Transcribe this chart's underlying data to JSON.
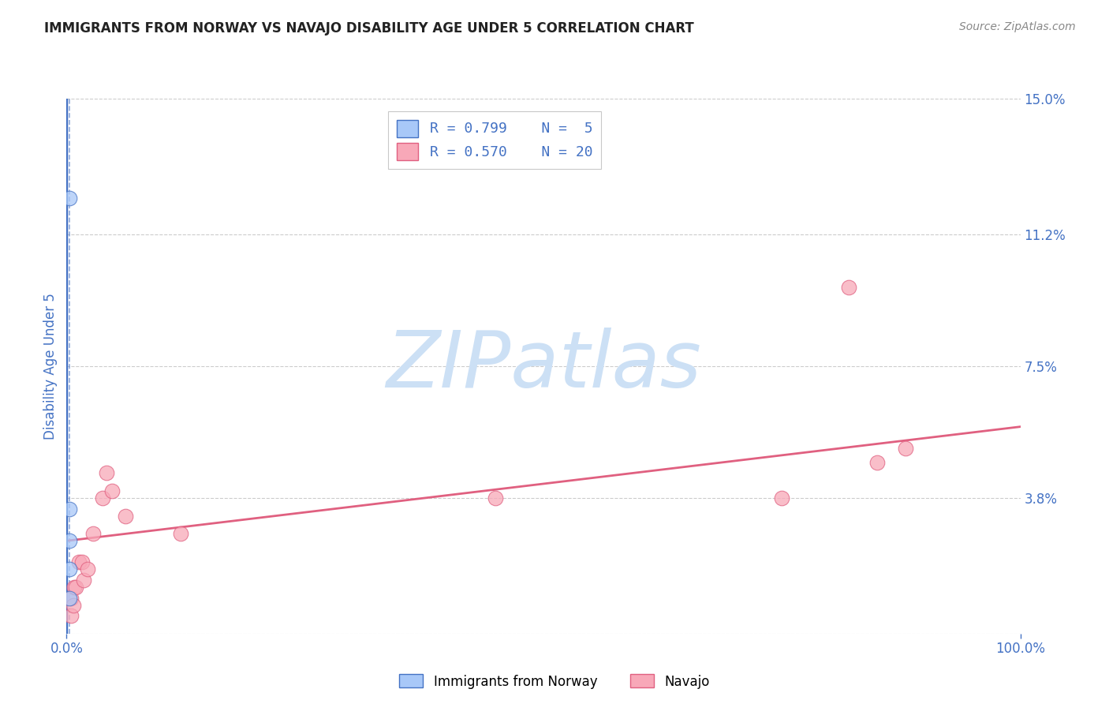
{
  "title": "IMMIGRANTS FROM NORWAY VS NAVAJO DISABILITY AGE UNDER 5 CORRELATION CHART",
  "source": "Source: ZipAtlas.com",
  "ylabel": "Disability Age Under 5",
  "xlim": [
    0,
    1.0
  ],
  "ylim": [
    0,
    0.15
  ],
  "ytick_positions": [
    0.0,
    0.038,
    0.075,
    0.112,
    0.15
  ],
  "ytick_labels": [
    "",
    "3.8%",
    "7.5%",
    "11.2%",
    "15.0%"
  ],
  "xtick_positions": [
    0.0,
    1.0
  ],
  "xtick_labels": [
    "0.0%",
    "100.0%"
  ],
  "legend_r1": "R = 0.799",
  "legend_n1": "N =  5",
  "legend_r2": "R = 0.570",
  "legend_n2": "N = 20",
  "norway_color": "#a8c8f8",
  "navajo_color": "#f8a8b8",
  "norway_edge_color": "#4472c4",
  "navajo_edge_color": "#e06080",
  "norway_scatter_x": [
    0.003,
    0.003,
    0.003,
    0.003,
    0.003
  ],
  "norway_scatter_y": [
    0.122,
    0.035,
    0.026,
    0.018,
    0.01
  ],
  "navajo_scatter_x": [
    0.005,
    0.005,
    0.007,
    0.008,
    0.01,
    0.013,
    0.016,
    0.018,
    0.022,
    0.028,
    0.038,
    0.042,
    0.048,
    0.062,
    0.45,
    0.12,
    0.82,
    0.88,
    0.85,
    0.75
  ],
  "navajo_scatter_y": [
    0.005,
    0.01,
    0.008,
    0.013,
    0.013,
    0.02,
    0.02,
    0.015,
    0.018,
    0.028,
    0.038,
    0.045,
    0.04,
    0.033,
    0.038,
    0.028,
    0.097,
    0.052,
    0.048,
    0.038
  ],
  "navajo_trend_x0": 0.0,
  "navajo_trend_x1": 1.0,
  "navajo_trend_y0": 0.026,
  "navajo_trend_y1": 0.058,
  "watermark_text": "ZIPatlas",
  "watermark_color": "#cce0f5",
  "background_color": "#ffffff",
  "grid_color": "#cccccc",
  "title_color": "#222222",
  "axis_color": "#4472c4",
  "norway_vline_x": 0.003,
  "point_size": 180
}
